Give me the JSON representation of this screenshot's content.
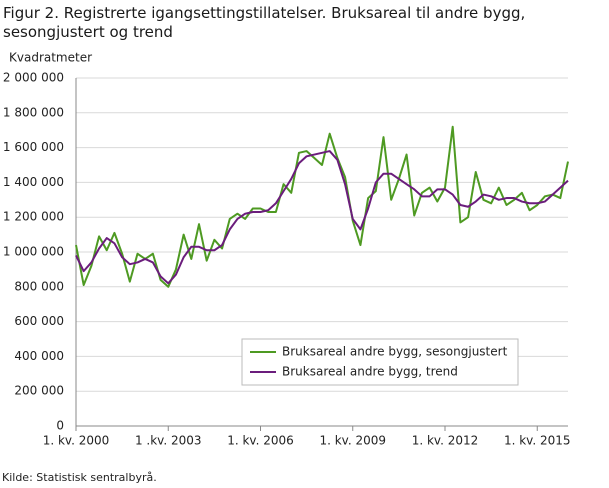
{
  "chart_data": {
    "type": "line",
    "title": "Figur 2. Registrerte igangsettingstillatelser. Bruksareal til andre bygg, sesongjustert og trend",
    "y_label": "Kvadratmeter",
    "source": "Kilde:  Statistisk sentralbyrå.",
    "categories": [
      "1. kv. 2000",
      null,
      null,
      null,
      null,
      null,
      null,
      null,
      null,
      null,
      null,
      null,
      "1 .kv. 2003",
      null,
      null,
      null,
      null,
      null,
      null,
      null,
      null,
      null,
      null,
      null,
      "1. kv. 2006",
      null,
      null,
      null,
      null,
      null,
      null,
      null,
      null,
      null,
      null,
      null,
      "1. kv. 2009",
      null,
      null,
      null,
      null,
      null,
      null,
      null,
      null,
      null,
      null,
      null,
      "1. kv. 2012",
      null,
      null,
      null,
      null,
      null,
      null,
      null,
      null,
      null,
      null,
      null,
      "1. kv. 2015",
      null,
      null,
      null,
      null
    ],
    "series": [
      {
        "name": "Bruksareal andre bygg, sesongjustert",
        "color": "#4e9a22",
        "values": [
          1040000,
          810000,
          920000,
          1090000,
          1010000,
          1110000,
          990000,
          830000,
          990000,
          960000,
          990000,
          840000,
          800000,
          900000,
          1100000,
          960000,
          1160000,
          950000,
          1070000,
          1020000,
          1190000,
          1220000,
          1190000,
          1250000,
          1250000,
          1230000,
          1230000,
          1390000,
          1340000,
          1570000,
          1580000,
          1540000,
          1500000,
          1680000,
          1540000,
          1430000,
          1180000,
          1040000,
          1310000,
          1350000,
          1660000,
          1300000,
          1420000,
          1560000,
          1210000,
          1340000,
          1370000,
          1290000,
          1370000,
          1720000,
          1170000,
          1200000,
          1460000,
          1300000,
          1280000,
          1370000,
          1270000,
          1300000,
          1340000,
          1240000,
          1270000,
          1320000,
          1330000,
          1310000,
          1520000
        ]
      },
      {
        "name": "Bruksareal andre bygg, trend",
        "color": "#6b1d7c",
        "values": [
          980000,
          890000,
          940000,
          1020000,
          1080000,
          1050000,
          970000,
          930000,
          940000,
          960000,
          940000,
          860000,
          820000,
          870000,
          970000,
          1030000,
          1030000,
          1010000,
          1010000,
          1040000,
          1130000,
          1190000,
          1220000,
          1230000,
          1230000,
          1240000,
          1280000,
          1350000,
          1420000,
          1510000,
          1550000,
          1560000,
          1570000,
          1580000,
          1530000,
          1390000,
          1190000,
          1130000,
          1250000,
          1400000,
          1450000,
          1450000,
          1420000,
          1390000,
          1360000,
          1320000,
          1320000,
          1360000,
          1360000,
          1330000,
          1270000,
          1260000,
          1290000,
          1330000,
          1320000,
          1300000,
          1310000,
          1310000,
          1290000,
          1280000,
          1280000,
          1290000,
          1330000,
          1370000,
          1410000
        ]
      }
    ],
    "ylim": [
      0,
      2000000
    ],
    "yticks": [
      0,
      {
        "value": 200000,
        "label": "200 000"
      },
      {
        "value": 400000,
        "label": "400 000"
      },
      {
        "value": 600000,
        "label": "600 000"
      },
      {
        "value": 800000,
        "label": "800 000"
      },
      {
        "value": 1000000,
        "label": "1 000 000"
      },
      {
        "value": 1200000,
        "label": "1 200 000"
      },
      {
        "value": 1400000,
        "label": "1 400 000"
      },
      {
        "value": 1600000,
        "label": "1 600 000"
      },
      {
        "value": 1800000,
        "label": "1 800 000"
      },
      {
        "value": 2000000,
        "label": "2 000 000"
      }
    ],
    "grid": true,
    "legend": "lower right"
  }
}
